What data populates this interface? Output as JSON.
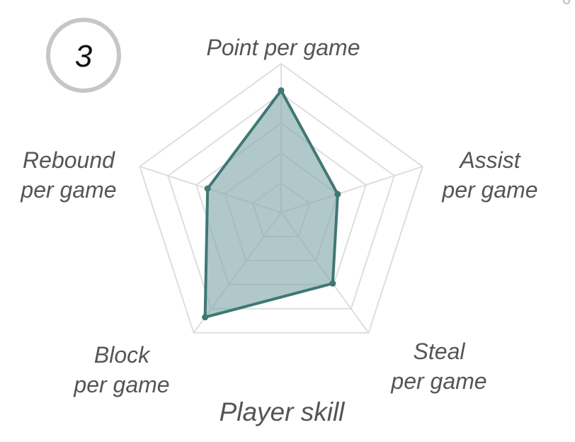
{
  "badge": {
    "number": "3",
    "ring_color": "#c6c6c6"
  },
  "corner_mark": "6",
  "chart_data": {
    "type": "radar",
    "title": "Player skill",
    "axes": [
      [
        "Point per game"
      ],
      [
        "Assist",
        "per game"
      ],
      [
        "Steal",
        "per game"
      ],
      [
        "Block",
        "per game"
      ],
      [
        "Rebound",
        "per game"
      ]
    ],
    "series": [
      {
        "values": [
          0.82,
          0.4,
          0.59,
          0.87,
          0.52
        ]
      }
    ],
    "range": [
      0,
      1
    ],
    "grid_levels": 5,
    "grid_color": "#dedede",
    "fill_color": "#86aaae",
    "fill_opacity": 0.65,
    "line_color": "#3f7873"
  }
}
